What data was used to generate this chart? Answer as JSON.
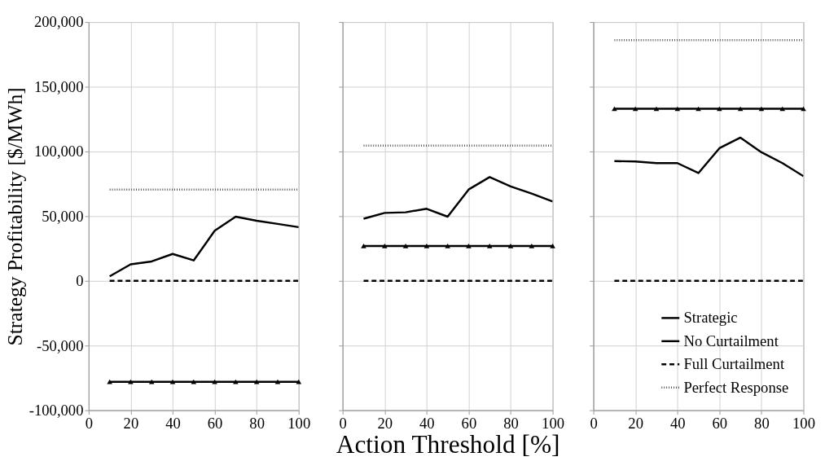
{
  "chart_data": [
    {
      "type": "line",
      "ylabel": "Strategy Profitability [$/MWh]",
      "x": [
        10,
        20,
        30,
        40,
        50,
        60,
        70,
        80,
        90,
        100
      ],
      "xlim": [
        0,
        100
      ],
      "xticks": [
        0,
        20,
        40,
        60,
        80,
        100
      ],
      "ylim": [
        -100000,
        200000
      ],
      "yticks": [
        {
          "value": -100000,
          "label": "-100,000"
        },
        {
          "value": -50000,
          "label": "-50,000"
        },
        0,
        {
          "value": 50000,
          "label": "50,000"
        },
        {
          "value": 100000,
          "label": "100,000"
        },
        {
          "value": 150000,
          "label": "150,000"
        },
        {
          "value": 200000,
          "label": "200,000"
        }
      ],
      "grid": true,
      "series": [
        {
          "color": "#000000",
          "line_style": "solid",
          "marker": "none",
          "values": [
            3500,
            12800,
            15000,
            20800,
            15800,
            38700,
            49600,
            46500,
            44000,
            41500
          ]
        },
        {
          "color": "#000000",
          "line_style": "solid",
          "marker": "triangle",
          "values": [
            -78000,
            -78000,
            -78000,
            -78000,
            -78000,
            -78000,
            -78000,
            -78000,
            -78000,
            -78000
          ]
        },
        {
          "color": "#000000",
          "line_style": "dashed",
          "marker": "none",
          "values": [
            0,
            0,
            0,
            0,
            0,
            0,
            0,
            0,
            0,
            0
          ]
        },
        {
          "color": "#555555",
          "line_style": "dotted",
          "marker": "none",
          "values": [
            70500,
            70500,
            70500,
            70500,
            70500,
            70500,
            70500,
            70500,
            70500,
            70500
          ]
        }
      ]
    },
    {
      "type": "line",
      "xlabel": "Action Threshold [%]",
      "x": [
        10,
        20,
        30,
        40,
        50,
        60,
        70,
        80,
        90,
        100
      ],
      "xlim": [
        0,
        100
      ],
      "xticks": [
        0,
        20,
        40,
        60,
        80,
        100
      ],
      "ylim": [
        -100000,
        200000
      ],
      "yticks": [
        -100000,
        -50000,
        0,
        50000,
        100000,
        150000,
        200000
      ],
      "grid": true,
      "tick_labels": "x",
      "series": [
        {
          "color": "#000000",
          "line_style": "solid",
          "marker": "none",
          "values": [
            48000,
            52500,
            53000,
            55700,
            49600,
            70600,
            80200,
            73000,
            67500,
            61300
          ]
        },
        {
          "color": "#000000",
          "line_style": "solid",
          "marker": "triangle",
          "values": [
            27000,
            27000,
            27000,
            27000,
            27000,
            27000,
            27000,
            27000,
            27000,
            27000
          ]
        },
        {
          "color": "#000000",
          "line_style": "dashed",
          "marker": "none",
          "values": [
            0,
            0,
            0,
            0,
            0,
            0,
            0,
            0,
            0,
            0
          ]
        },
        {
          "color": "#555555",
          "line_style": "dotted",
          "marker": "none",
          "values": [
            104500,
            104500,
            104500,
            104500,
            104500,
            104500,
            104500,
            104500,
            104500,
            104500
          ]
        }
      ]
    },
    {
      "type": "line",
      "x": [
        10,
        20,
        30,
        40,
        50,
        60,
        70,
        80,
        90,
        100
      ],
      "xlim": [
        0,
        100
      ],
      "xticks": [
        0,
        20,
        40,
        60,
        80,
        100
      ],
      "ylim": [
        -100000,
        200000
      ],
      "yticks": [
        -100000,
        -50000,
        0,
        50000,
        100000,
        150000,
        200000
      ],
      "grid": true,
      "tick_labels": "x",
      "legend": "bottom right",
      "series": [
        {
          "name": "Strategic",
          "color": "#000000",
          "line_style": "solid",
          "marker": "none",
          "values": [
            92600,
            92200,
            91000,
            91000,
            83300,
            102500,
            110700,
            99400,
            91000,
            80900
          ]
        },
        {
          "name": "No Curtailment",
          "color": "#000000",
          "line_style": "solid",
          "marker": "triangle",
          "values": [
            133000,
            133000,
            133000,
            133000,
            133000,
            133000,
            133000,
            133000,
            133000,
            133000
          ]
        },
        {
          "name": "Full Curtailment",
          "color": "#000000",
          "line_style": "dashed",
          "marker": "none",
          "values": [
            0,
            0,
            0,
            0,
            0,
            0,
            0,
            0,
            0,
            0
          ]
        },
        {
          "name": "Perfect Response",
          "color": "#555555",
          "line_style": "dotted",
          "marker": "none",
          "values": [
            186000,
            186000,
            186000,
            186000,
            186000,
            186000,
            186000,
            186000,
            186000,
            186000
          ]
        }
      ]
    }
  ]
}
